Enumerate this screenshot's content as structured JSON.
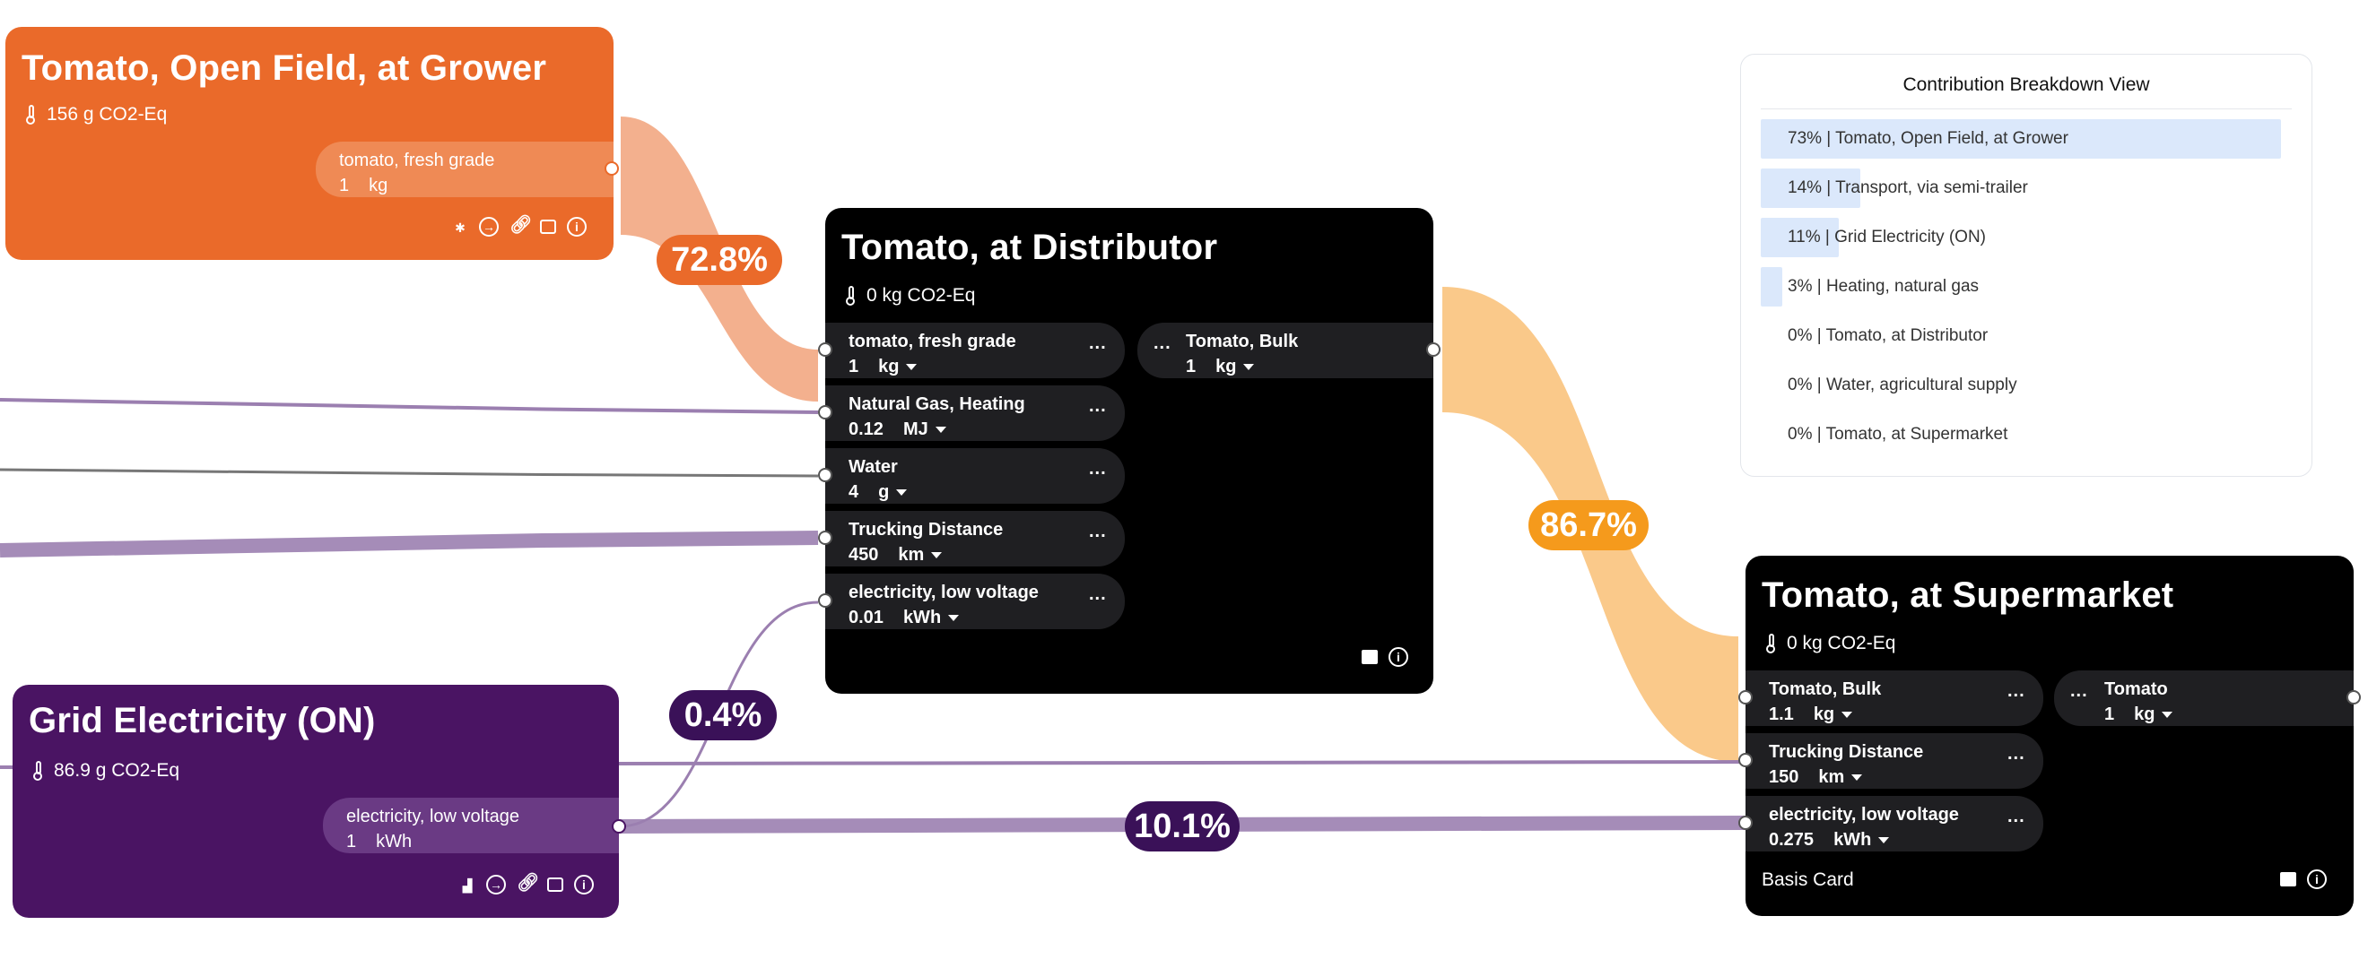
{
  "colors": {
    "orange": "#ea6a2a",
    "purple": "#4a1463",
    "black": "#000000",
    "flow_orange_light": "#f3b08e",
    "flow_orange_yellow": "#fac98a",
    "flow_purple": "#9b7fb0",
    "flow_gray": "#777777",
    "bar_blue": "#dbe8fb"
  },
  "card_grower": {
    "title": "Tomato, Open Field, at Grower",
    "emission": "156 g CO2-Eq",
    "output": {
      "name": "tomato, fresh grade",
      "qty": "1",
      "unit": "kg"
    },
    "icons": [
      "bug-icon",
      "arrow-circle-icon",
      "link-icon",
      "lock-icon",
      "info-icon"
    ]
  },
  "card_distributor": {
    "title": "Tomato, at Distributor",
    "emission": "0 kg CO2-Eq",
    "inputs": [
      {
        "name": "tomato, fresh grade",
        "qty": "1",
        "unit": "kg"
      },
      {
        "name": "Natural Gas, Heating",
        "qty": "0.12",
        "unit": "MJ"
      },
      {
        "name": "Water",
        "qty": "4",
        "unit": "g"
      },
      {
        "name": "Trucking Distance",
        "qty": "450",
        "unit": "km"
      },
      {
        "name": "electricity, low voltage",
        "qty": "0.01",
        "unit": "kWh"
      }
    ],
    "output": {
      "name": "Tomato, Bulk",
      "qty": "1",
      "unit": "kg"
    },
    "more": "..."
  },
  "card_grid": {
    "title": "Grid Electricity (ON)",
    "emission": "86.9 g CO2-Eq",
    "output": {
      "name": "electricity, low voltage",
      "qty": "1",
      "unit": "kWh"
    }
  },
  "card_supermarket": {
    "title": "Tomato, at Supermarket",
    "emission": "0 kg CO2-Eq",
    "inputs": [
      {
        "name": "Tomato, Bulk",
        "qty": "1.1",
        "unit": "kg"
      },
      {
        "name": "Trucking Distance",
        "qty": "150",
        "unit": "km"
      },
      {
        "name": "electricity, low voltage",
        "qty": "0.275",
        "unit": "kWh"
      }
    ],
    "output": {
      "name": "Tomato",
      "qty": "1",
      "unit": "kg"
    },
    "footer": "Basis Card"
  },
  "flow_badges": {
    "grower_to_distributor": "72.8%",
    "distributor_to_supermarket": "86.7%",
    "grid_to_distributor": "0.4%",
    "grid_to_supermarket": "10.1%"
  },
  "breakdown": {
    "title": "Contribution Breakdown View",
    "rows": [
      {
        "label": "73% | Tomato, Open Field, at Grower",
        "share": 0.73
      },
      {
        "label": "14% | Transport, via semi-trailer",
        "share": 0.14
      },
      {
        "label": "11% | Grid Electricity (ON)",
        "share": 0.11
      },
      {
        "label": "3% | Heating, natural gas",
        "share": 0.03
      },
      {
        "label": "0% | Tomato, at Distributor",
        "share": 0
      },
      {
        "label": "0% | Water, agricultural supply",
        "share": 0
      },
      {
        "label": "0% | Tomato, at Supermarket",
        "share": 0
      }
    ]
  }
}
